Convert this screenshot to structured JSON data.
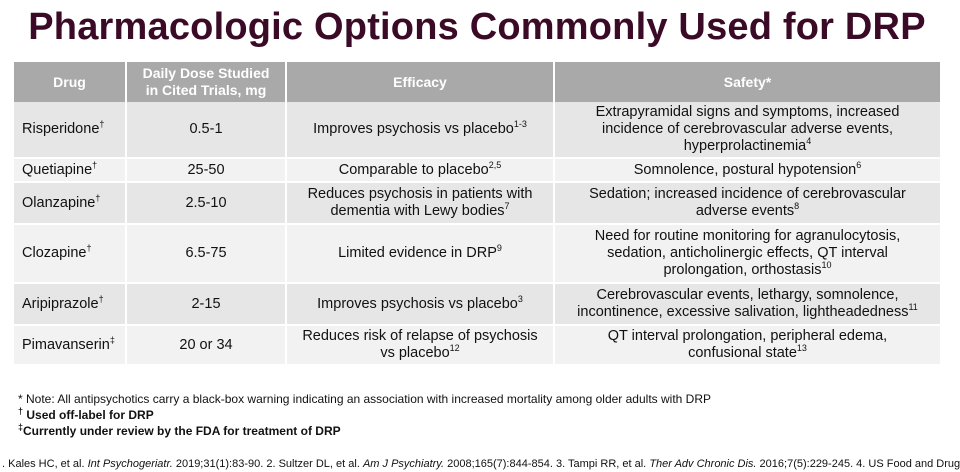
{
  "title": "Pharmacologic Options Commonly Used for DRP",
  "table": {
    "headers": {
      "drug": "Drug",
      "dose_line1": "Daily Dose Studied",
      "dose_line2": "in Cited Trials, mg",
      "efficacy": "Efficacy",
      "safety": "Safety*"
    },
    "rows": [
      {
        "drug": "Risperidone",
        "drug_mark": "†",
        "dose": "0.5-1",
        "efficacy": [
          "Improves psychosis vs placebo"
        ],
        "efficacy_ref": "1-3",
        "safety": [
          "Extrapyramidal signs and symptoms, increased",
          "incidence of cerebrovascular adverse events,",
          "hyperprolactinemia"
        ],
        "safety_ref": "4"
      },
      {
        "drug": "Quetiapine",
        "drug_mark": "†",
        "dose": "25-50",
        "efficacy": [
          "Comparable to placebo"
        ],
        "efficacy_ref": "2,5",
        "safety": [
          "Somnolence, postural hypotension"
        ],
        "safety_ref": "6"
      },
      {
        "drug": "Olanzapine",
        "drug_mark": "†",
        "dose": "2.5-10",
        "efficacy": [
          "Reduces psychosis in patients with",
          "dementia with Lewy bodies"
        ],
        "efficacy_ref": "7",
        "safety": [
          "Sedation; increased incidence of cerebrovascular",
          "adverse events"
        ],
        "safety_ref": "8"
      },
      {
        "drug": "Clozapine",
        "drug_mark": "†",
        "dose": "6.5-75",
        "efficacy": [
          "Limited evidence in DRP"
        ],
        "efficacy_ref": "9",
        "safety": [
          "Need for routine monitoring for agranulocytosis,",
          "sedation, anticholinergic effects, QT interval",
          "prolongation, orthostasis"
        ],
        "safety_ref": "10"
      },
      {
        "drug": "Aripiprazole",
        "drug_mark": "†",
        "dose": "2-15",
        "efficacy": [
          "Improves psychosis vs placebo"
        ],
        "efficacy_ref": "3",
        "safety": [
          "Cerebrovascular events, lethargy, somnolence,",
          "incontinence, excessive salivation, lightheadedness"
        ],
        "safety_ref": "11"
      },
      {
        "drug": "Pimavanserin",
        "drug_mark": "‡",
        "dose": "20 or 34",
        "efficacy": [
          "Reduces risk of relapse of psychosis",
          "vs placebo"
        ],
        "efficacy_ref": "12",
        "safety": [
          "QT interval prolongation, peripheral edema,",
          "confusional state"
        ],
        "safety_ref": "13"
      }
    ]
  },
  "notes": {
    "note1": "* Note: All antipsychotics carry a black-box warning indicating an association with increased mortality among older adults with DRP",
    "note2_mark": "†",
    "note2": " Used off-label for DRP",
    "note3_mark": "‡",
    "note3": "Currently under review by the FDA for treatment of DRP"
  },
  "references": {
    "r1": ". Kales HC, et al. ",
    "r1_journal": "Int Psychogeriatr.",
    "r1_rest": " 2019;31(1):83-90. 2. Sultzer DL, et al. ",
    "r2_journal": "Am J Psychiatry.",
    "r2_rest": " 2008;165(7):844-854. 3. Tampi RR, et al. ",
    "r3_journal": "Ther Adv Chronic Dis.",
    "r3_rest": " 2016;7(5):229-245. 4. US Food and Drug"
  }
}
